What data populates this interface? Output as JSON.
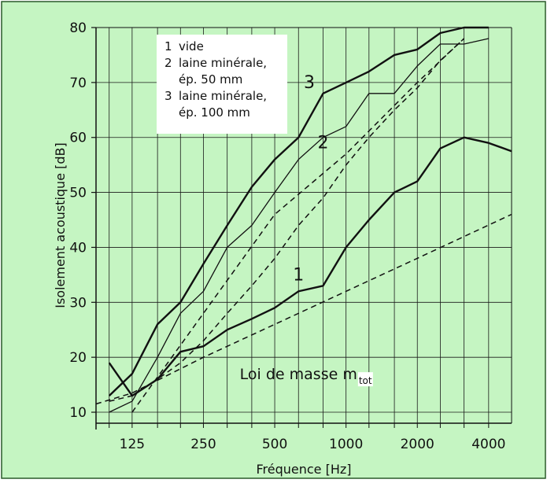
{
  "chart_data": {
    "type": "line",
    "title": "",
    "xlabel": "Fréquence [Hz]",
    "ylabel": "Isolement acoustique [dB]",
    "xscale": "log",
    "xlim": [
      88,
      5000
    ],
    "ylim": [
      8,
      80
    ],
    "xticks": [
      125,
      250,
      500,
      1000,
      2000,
      4000
    ],
    "yticks": [
      10,
      20,
      30,
      40,
      50,
      60,
      70,
      80
    ],
    "grid": true,
    "background_color": "#c5f5c2",
    "grid_color": "#1a1a1a",
    "legend": {
      "placement": "top-left",
      "entries": [
        {
          "num": "1",
          "lines": [
            "vide"
          ]
        },
        {
          "num": "2",
          "lines": [
            "laine minérale,",
            "ép. 50 mm"
          ]
        },
        {
          "num": "3",
          "lines": [
            "laine minérale,",
            "ép. 100 mm"
          ]
        }
      ]
    },
    "series": [
      {
        "label": "1",
        "style": "solid-thick",
        "label_pos": {
          "x": 630,
          "y": 34
        },
        "points": [
          [
            100,
            19
          ],
          [
            125,
            13
          ],
          [
            160,
            16
          ],
          [
            200,
            21
          ],
          [
            250,
            22
          ],
          [
            315,
            25
          ],
          [
            400,
            27
          ],
          [
            500,
            29
          ],
          [
            630,
            32
          ],
          [
            800,
            33
          ],
          [
            1000,
            40
          ],
          [
            1250,
            45
          ],
          [
            1600,
            50
          ],
          [
            2000,
            52
          ],
          [
            2500,
            58
          ],
          [
            3150,
            60
          ],
          [
            4000,
            59
          ],
          [
            5000,
            57.5
          ]
        ]
      },
      {
        "label": "2",
        "style": "solid-thin",
        "label_pos": {
          "x": 800,
          "y": 58
        },
        "points": [
          [
            100,
            10
          ],
          [
            125,
            12
          ],
          [
            160,
            20
          ],
          [
            200,
            28
          ],
          [
            250,
            32
          ],
          [
            315,
            40
          ],
          [
            400,
            44
          ],
          [
            500,
            50
          ],
          [
            630,
            56
          ],
          [
            800,
            60
          ],
          [
            1000,
            62
          ],
          [
            1250,
            68
          ],
          [
            1600,
            68
          ],
          [
            2000,
            73
          ],
          [
            2500,
            77
          ],
          [
            3150,
            77
          ],
          [
            4000,
            78
          ]
        ]
      },
      {
        "label": "3",
        "style": "solid-thick",
        "label_pos": {
          "x": 700,
          "y": 69
        },
        "points": [
          [
            100,
            13
          ],
          [
            125,
            17
          ],
          [
            160,
            26
          ],
          [
            200,
            30
          ],
          [
            250,
            37
          ],
          [
            315,
            44
          ],
          [
            400,
            51
          ],
          [
            500,
            56
          ],
          [
            630,
            60
          ],
          [
            800,
            68
          ],
          [
            1000,
            70
          ],
          [
            1250,
            72
          ],
          [
            1600,
            75
          ],
          [
            2000,
            76
          ],
          [
            2500,
            79
          ],
          [
            3150,
            80
          ],
          [
            4000,
            80
          ]
        ]
      },
      {
        "label": "",
        "style": "dashed",
        "points": [
          [
            88,
            11.5
          ],
          [
            125,
            13.5
          ],
          [
            250,
            20
          ],
          [
            500,
            26
          ],
          [
            1000,
            32
          ],
          [
            2000,
            38
          ],
          [
            5000,
            46
          ]
        ]
      },
      {
        "label": "",
        "style": "dashed",
        "points": [
          [
            100,
            12
          ],
          [
            125,
            13
          ],
          [
            160,
            16
          ],
          [
            200,
            19
          ],
          [
            250,
            23
          ],
          [
            315,
            28
          ],
          [
            400,
            33
          ],
          [
            500,
            38
          ],
          [
            630,
            44
          ],
          [
            800,
            49
          ],
          [
            1000,
            55
          ],
          [
            1250,
            60
          ],
          [
            1600,
            65
          ],
          [
            2000,
            69
          ],
          [
            2500,
            74
          ],
          [
            3150,
            78
          ]
        ]
      },
      {
        "label": "",
        "style": "dashed",
        "points": [
          [
            125,
            10
          ],
          [
            250,
            28
          ],
          [
            500,
            46
          ],
          [
            1000,
            57
          ],
          [
            2000,
            70
          ],
          [
            3150,
            78
          ]
        ]
      }
    ],
    "annotation": {
      "main": "Loi de masse m",
      "sub": "tot",
      "pos": {
        "x": 630,
        "y": 16
      }
    }
  }
}
